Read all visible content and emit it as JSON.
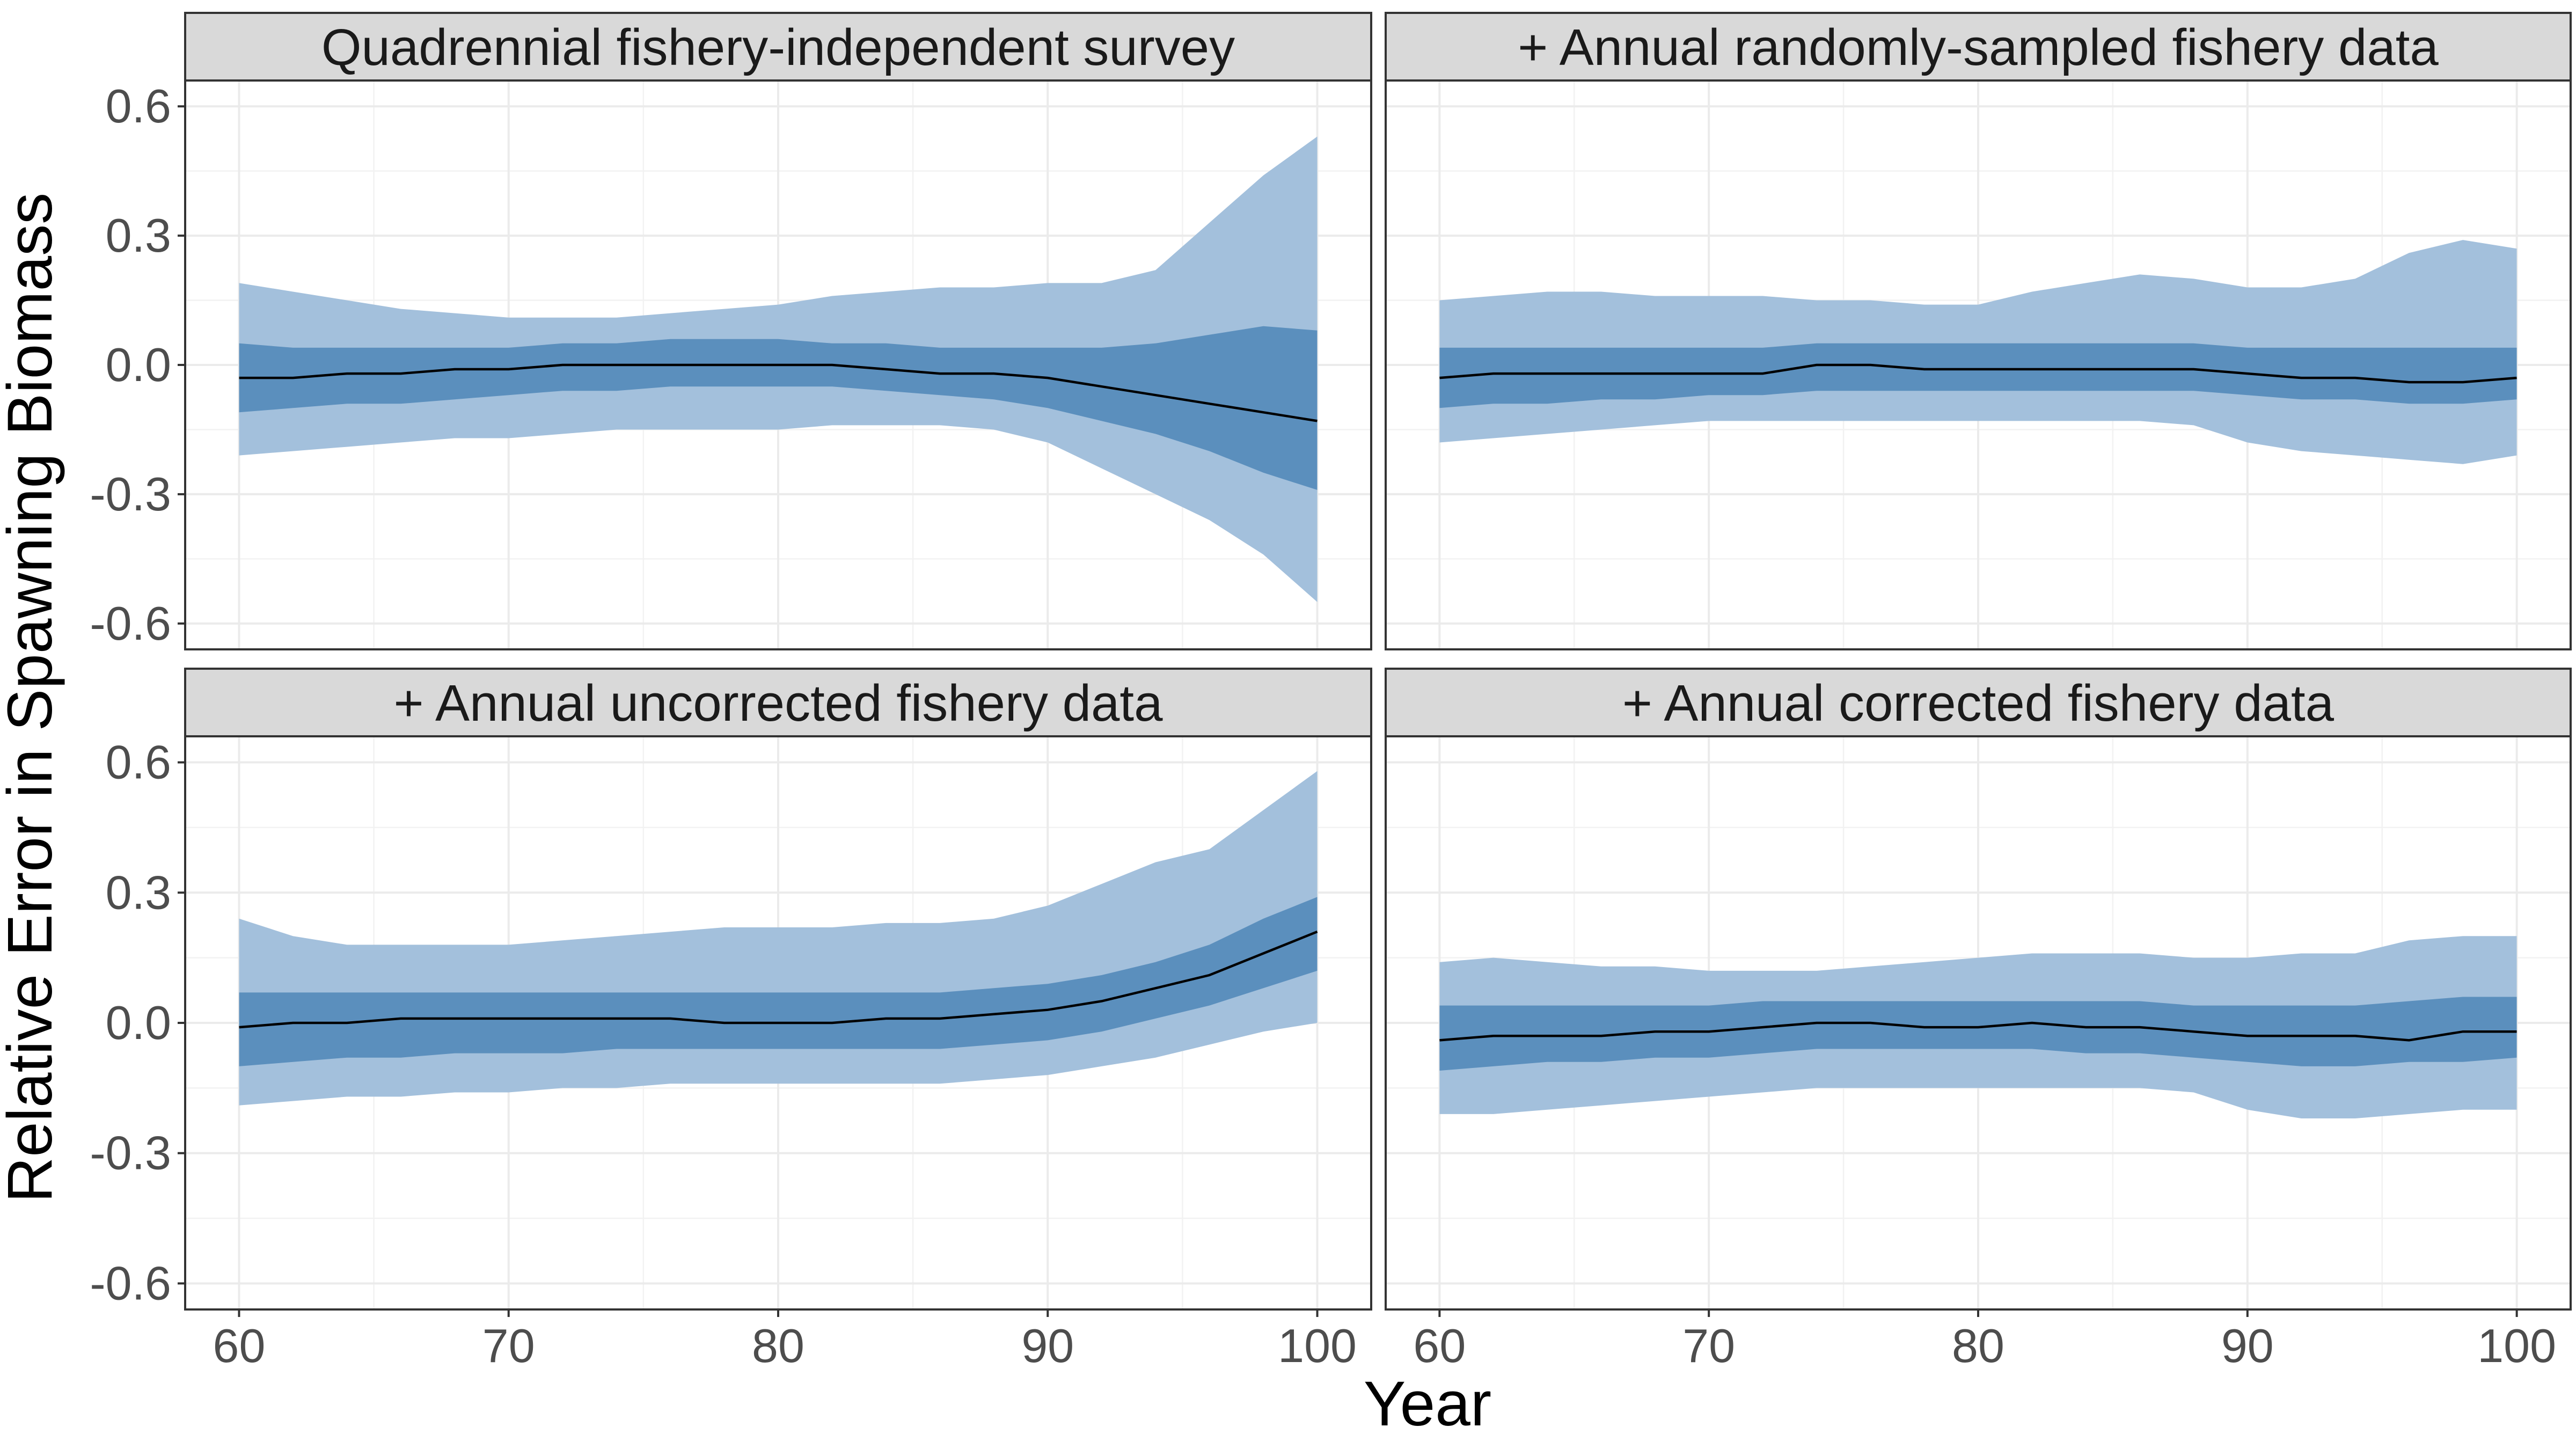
{
  "chart_data": {
    "type": "area",
    "layout": "facet-grid 2x2",
    "xlabel": "Year",
    "ylabel": "Relative Error in Spawning Biomass",
    "xlim": [
      58,
      102
    ],
    "ylim": [
      -0.66,
      0.66
    ],
    "x_ticks": [
      60,
      70,
      80,
      90,
      100
    ],
    "x_tick_labels": [
      "60",
      "70",
      "80",
      "90",
      "100"
    ],
    "y_ticks": [
      0.6,
      0.3,
      0.0,
      -0.3,
      -0.6
    ],
    "y_tick_labels": [
      "0.6",
      "0.3",
      "0.0",
      "-0.3",
      "-0.6"
    ],
    "grid": true,
    "legend": "none",
    "colors": {
      "outer_band": "#a3c0dc",
      "inner_band": "#5b8fbd",
      "median_line": "#000000",
      "strip": "#d9d9d9",
      "panel_border": "#333333",
      "grid": "#ebebeb"
    },
    "series_roles": [
      "outer interval (light band)",
      "inner interval (dark band)",
      "median (line)"
    ],
    "x": [
      60,
      62,
      64,
      66,
      68,
      70,
      72,
      74,
      76,
      78,
      80,
      82,
      84,
      86,
      88,
      90,
      92,
      94,
      96,
      98,
      100
    ],
    "panels": [
      {
        "title": "Quadrennial fishery-independent survey",
        "median": [
          -0.03,
          -0.03,
          -0.02,
          -0.02,
          -0.01,
          -0.01,
          0.0,
          0.0,
          0.0,
          0.0,
          0.0,
          0.0,
          -0.01,
          -0.02,
          -0.02,
          -0.03,
          -0.05,
          -0.07,
          -0.09,
          -0.11,
          -0.13
        ],
        "inner_low": [
          -0.11,
          -0.1,
          -0.09,
          -0.09,
          -0.08,
          -0.07,
          -0.06,
          -0.06,
          -0.05,
          -0.05,
          -0.05,
          -0.05,
          -0.06,
          -0.07,
          -0.08,
          -0.1,
          -0.13,
          -0.16,
          -0.2,
          -0.25,
          -0.29
        ],
        "inner_high": [
          0.05,
          0.04,
          0.04,
          0.04,
          0.04,
          0.04,
          0.05,
          0.05,
          0.06,
          0.06,
          0.06,
          0.05,
          0.05,
          0.04,
          0.04,
          0.04,
          0.04,
          0.05,
          0.07,
          0.09,
          0.08
        ],
        "outer_low": [
          -0.21,
          -0.2,
          -0.19,
          -0.18,
          -0.17,
          -0.17,
          -0.16,
          -0.15,
          -0.15,
          -0.15,
          -0.15,
          -0.14,
          -0.14,
          -0.14,
          -0.15,
          -0.18,
          -0.24,
          -0.3,
          -0.36,
          -0.44,
          -0.55
        ],
        "outer_high": [
          0.19,
          0.17,
          0.15,
          0.13,
          0.12,
          0.11,
          0.11,
          0.11,
          0.12,
          0.13,
          0.14,
          0.16,
          0.17,
          0.18,
          0.18,
          0.19,
          0.19,
          0.22,
          0.33,
          0.44,
          0.53
        ]
      },
      {
        "title": "+ Annual randomly-sampled fishery data",
        "median": [
          -0.03,
          -0.02,
          -0.02,
          -0.02,
          -0.02,
          -0.02,
          -0.02,
          0.0,
          0.0,
          -0.01,
          -0.01,
          -0.01,
          -0.01,
          -0.01,
          -0.01,
          -0.02,
          -0.03,
          -0.03,
          -0.04,
          -0.04,
          -0.03
        ],
        "inner_low": [
          -0.1,
          -0.09,
          -0.09,
          -0.08,
          -0.08,
          -0.07,
          -0.07,
          -0.06,
          -0.06,
          -0.06,
          -0.06,
          -0.06,
          -0.06,
          -0.06,
          -0.06,
          -0.07,
          -0.08,
          -0.08,
          -0.09,
          -0.09,
          -0.08
        ],
        "inner_high": [
          0.04,
          0.04,
          0.04,
          0.04,
          0.04,
          0.04,
          0.04,
          0.05,
          0.05,
          0.05,
          0.05,
          0.05,
          0.05,
          0.05,
          0.05,
          0.04,
          0.04,
          0.04,
          0.04,
          0.04,
          0.04
        ],
        "outer_low": [
          -0.18,
          -0.17,
          -0.16,
          -0.15,
          -0.14,
          -0.13,
          -0.13,
          -0.13,
          -0.13,
          -0.13,
          -0.13,
          -0.13,
          -0.13,
          -0.13,
          -0.14,
          -0.18,
          -0.2,
          -0.21,
          -0.22,
          -0.23,
          -0.21
        ],
        "outer_high": [
          0.15,
          0.16,
          0.17,
          0.17,
          0.16,
          0.16,
          0.16,
          0.15,
          0.15,
          0.14,
          0.14,
          0.17,
          0.19,
          0.21,
          0.2,
          0.18,
          0.18,
          0.2,
          0.26,
          0.29,
          0.27
        ]
      },
      {
        "title": "+ Annual uncorrected fishery data",
        "median": [
          -0.01,
          0.0,
          0.0,
          0.01,
          0.01,
          0.01,
          0.01,
          0.01,
          0.01,
          0.0,
          0.0,
          0.0,
          0.01,
          0.01,
          0.02,
          0.03,
          0.05,
          0.08,
          0.11,
          0.16,
          0.21
        ],
        "inner_low": [
          -0.1,
          -0.09,
          -0.08,
          -0.08,
          -0.07,
          -0.07,
          -0.07,
          -0.06,
          -0.06,
          -0.06,
          -0.06,
          -0.06,
          -0.06,
          -0.06,
          -0.05,
          -0.04,
          -0.02,
          0.01,
          0.04,
          0.08,
          0.12
        ],
        "inner_high": [
          0.07,
          0.07,
          0.07,
          0.07,
          0.07,
          0.07,
          0.07,
          0.07,
          0.07,
          0.07,
          0.07,
          0.07,
          0.07,
          0.07,
          0.08,
          0.09,
          0.11,
          0.14,
          0.18,
          0.24,
          0.29
        ],
        "outer_low": [
          -0.19,
          -0.18,
          -0.17,
          -0.17,
          -0.16,
          -0.16,
          -0.15,
          -0.15,
          -0.14,
          -0.14,
          -0.14,
          -0.14,
          -0.14,
          -0.14,
          -0.13,
          -0.12,
          -0.1,
          -0.08,
          -0.05,
          -0.02,
          0.0
        ],
        "outer_high": [
          0.24,
          0.2,
          0.18,
          0.18,
          0.18,
          0.18,
          0.19,
          0.2,
          0.21,
          0.22,
          0.22,
          0.22,
          0.23,
          0.23,
          0.24,
          0.27,
          0.32,
          0.37,
          0.4,
          0.49,
          0.58
        ]
      },
      {
        "title": "+ Annual corrected fishery data",
        "median": [
          -0.04,
          -0.03,
          -0.03,
          -0.03,
          -0.02,
          -0.02,
          -0.01,
          0.0,
          0.0,
          -0.01,
          -0.01,
          0.0,
          -0.01,
          -0.01,
          -0.02,
          -0.03,
          -0.03,
          -0.03,
          -0.04,
          -0.02,
          -0.02
        ],
        "inner_low": [
          -0.11,
          -0.1,
          -0.09,
          -0.09,
          -0.08,
          -0.08,
          -0.07,
          -0.06,
          -0.06,
          -0.06,
          -0.06,
          -0.06,
          -0.07,
          -0.07,
          -0.08,
          -0.09,
          -0.1,
          -0.1,
          -0.09,
          -0.09,
          -0.08
        ],
        "inner_high": [
          0.04,
          0.04,
          0.04,
          0.04,
          0.04,
          0.04,
          0.05,
          0.05,
          0.05,
          0.05,
          0.05,
          0.05,
          0.05,
          0.05,
          0.04,
          0.04,
          0.04,
          0.04,
          0.05,
          0.06,
          0.06
        ],
        "outer_low": [
          -0.21,
          -0.21,
          -0.2,
          -0.19,
          -0.18,
          -0.17,
          -0.16,
          -0.15,
          -0.15,
          -0.15,
          -0.15,
          -0.15,
          -0.15,
          -0.15,
          -0.16,
          -0.2,
          -0.22,
          -0.22,
          -0.21,
          -0.2,
          -0.2
        ],
        "outer_high": [
          0.14,
          0.15,
          0.14,
          0.13,
          0.13,
          0.12,
          0.12,
          0.12,
          0.13,
          0.14,
          0.15,
          0.16,
          0.16,
          0.16,
          0.15,
          0.15,
          0.16,
          0.16,
          0.19,
          0.2,
          0.2
        ]
      }
    ]
  }
}
